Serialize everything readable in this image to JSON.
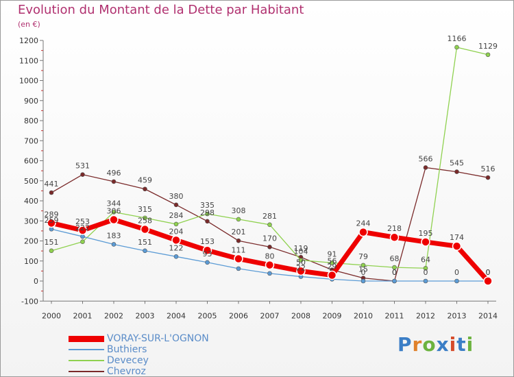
{
  "header": {
    "title": "Evolution du Montant de la Dette par Habitant",
    "unit": "(en €)"
  },
  "brand": {
    "letters": [
      "P",
      "r",
      "o",
      "x",
      "i",
      "t",
      "i"
    ],
    "colors": [
      "#3b7ec6",
      "#e0812b",
      "#6cb33f",
      "#3b7ec6",
      "#d64b2a",
      "#3b7ec6",
      "#6cb33f"
    ]
  },
  "chart_data": {
    "type": "line",
    "title": "Evolution du Montant de la Dette par Habitant",
    "ylabel": "(en €)",
    "xlabel": "",
    "ylim": [
      -100,
      1200
    ],
    "yticks": [
      -100,
      0,
      100,
      200,
      300,
      400,
      500,
      600,
      700,
      800,
      900,
      1000,
      1100,
      1200
    ],
    "grid": false,
    "legend_position": "bottom-left",
    "x": [
      "2000",
      "2001",
      "2002",
      "2003",
      "2004",
      "2005",
      "2006",
      "2007",
      "2008",
      "2009",
      "2010",
      "2011",
      "2012",
      "2013",
      "2014"
    ],
    "series": [
      {
        "name": "VORAY-SUR-L'OGNON",
        "color": "#ee0000",
        "values": [
          289,
          253,
          306,
          258,
          204,
          153,
          111,
          80,
          50,
          29,
          244,
          218,
          195,
          174,
          0
        ],
        "labels": [
          "289",
          "253",
          "306",
          "258",
          "204",
          "153",
          "111",
          "80",
          "50",
          "29",
          "244",
          "218",
          "195",
          "174",
          "0"
        ]
      },
      {
        "name": "Buthiers",
        "color": "#5b9bd5",
        "values": [
          259,
          222,
          183,
          151,
          122,
          93,
          62,
          38,
          22,
          9,
          0,
          0,
          0,
          0,
          0
        ],
        "labels": [
          "259",
          "222",
          "183",
          "151",
          "122",
          "93",
          "",
          "",
          "22",
          "",
          "0",
          "0",
          "0",
          "0",
          "0"
        ]
      },
      {
        "name": "Devecey",
        "color": "#8fd14f",
        "values": [
          151,
          196,
          344,
          315,
          284,
          335,
          308,
          281,
          104,
          91,
          79,
          68,
          64,
          1166,
          1129
        ],
        "labels": [
          "151",
          "",
          "344",
          "315",
          "284",
          "335",
          "308",
          "281",
          "104",
          "91",
          "79",
          "68",
          "64",
          "1166",
          "1129"
        ]
      },
      {
        "name": "Chevroz",
        "color": "#7a2a2a",
        "values": [
          441,
          531,
          496,
          459,
          380,
          298,
          201,
          170,
          119,
          56,
          15,
          0,
          566,
          545,
          516
        ],
        "labels": [
          "441",
          "531",
          "496",
          "459",
          "380",
          "298",
          "201",
          "170",
          "119",
          "56",
          "15",
          "0",
          "566",
          "545",
          "516"
        ]
      }
    ]
  }
}
